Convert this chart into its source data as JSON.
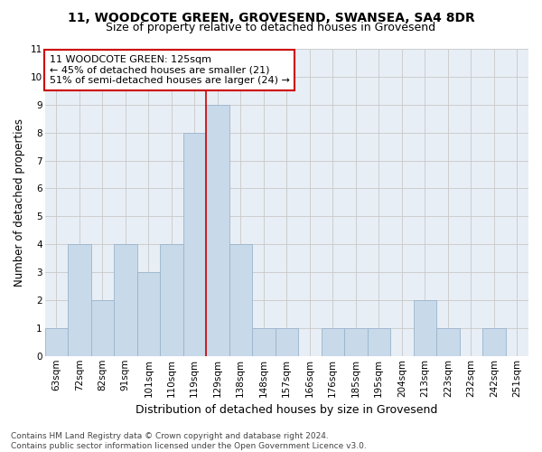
{
  "title_line1": "11, WOODCOTE GREEN, GROVESEND, SWANSEA, SA4 8DR",
  "title_line2": "Size of property relative to detached houses in Grovesend",
  "xlabel": "Distribution of detached houses by size in Grovesend",
  "ylabel": "Number of detached properties",
  "categories": [
    "63sqm",
    "72sqm",
    "82sqm",
    "91sqm",
    "101sqm",
    "110sqm",
    "119sqm",
    "129sqm",
    "138sqm",
    "148sqm",
    "157sqm",
    "166sqm",
    "176sqm",
    "185sqm",
    "195sqm",
    "204sqm",
    "213sqm",
    "223sqm",
    "232sqm",
    "242sqm",
    "251sqm"
  ],
  "values": [
    1,
    4,
    2,
    4,
    3,
    4,
    8,
    9,
    4,
    1,
    1,
    0,
    1,
    1,
    1,
    0,
    2,
    1,
    0,
    1,
    0
  ],
  "bar_color": "#c8d9ea",
  "bar_edge_color": "#9ab5cd",
  "bar_linewidth": 0.6,
  "grid_color": "#c8c8c8",
  "annotation_text": "11 WOODCOTE GREEN: 125sqm\n← 45% of detached houses are smaller (21)\n51% of semi-detached houses are larger (24) →",
  "annotation_box_color": "white",
  "annotation_box_edge_color": "#cc0000",
  "vline_x_index": 7,
  "vline_color": "#cc0000",
  "vline_linewidth": 1.2,
  "ylim": [
    0,
    11
  ],
  "yticks": [
    0,
    1,
    2,
    3,
    4,
    5,
    6,
    7,
    8,
    9,
    10,
    11
  ],
  "footnote": "Contains HM Land Registry data © Crown copyright and database right 2024.\nContains public sector information licensed under the Open Government Licence v3.0.",
  "background_color": "#e8eef5",
  "title_fontsize": 10,
  "subtitle_fontsize": 9,
  "tick_fontsize": 7.5,
  "ylabel_fontsize": 8.5,
  "xlabel_fontsize": 9,
  "annotation_fontsize": 8,
  "footnote_fontsize": 6.5,
  "title_color": "#000000",
  "footnote_color": "#444444"
}
